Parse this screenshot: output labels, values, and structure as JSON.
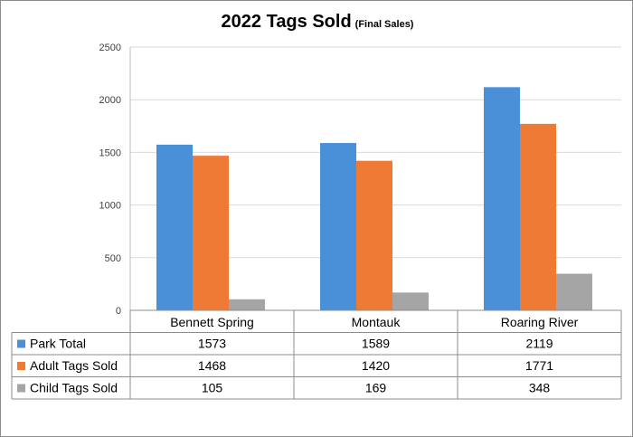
{
  "chart_data": {
    "type": "bar",
    "title": "2022 Tags Sold",
    "subtitle": "(Final Sales)",
    "categories": [
      "Bennett Spring",
      "Montauk",
      "Roaring River"
    ],
    "series": [
      {
        "name": "Park Total",
        "values": [
          1573,
          1589,
          2119
        ],
        "color": "#4a90d9"
      },
      {
        "name": "Adult Tags Sold",
        "values": [
          1468,
          1420,
          1771
        ],
        "color": "#ee7a35"
      },
      {
        "name": "Child Tags Sold",
        "values": [
          105,
          169,
          348
        ],
        "color": "#a5a5a5"
      }
    ],
    "ylim": [
      0,
      2500
    ],
    "yticks": [
      0,
      500,
      1000,
      1500,
      2000,
      2500
    ],
    "grid": true,
    "legend": "data-table"
  }
}
